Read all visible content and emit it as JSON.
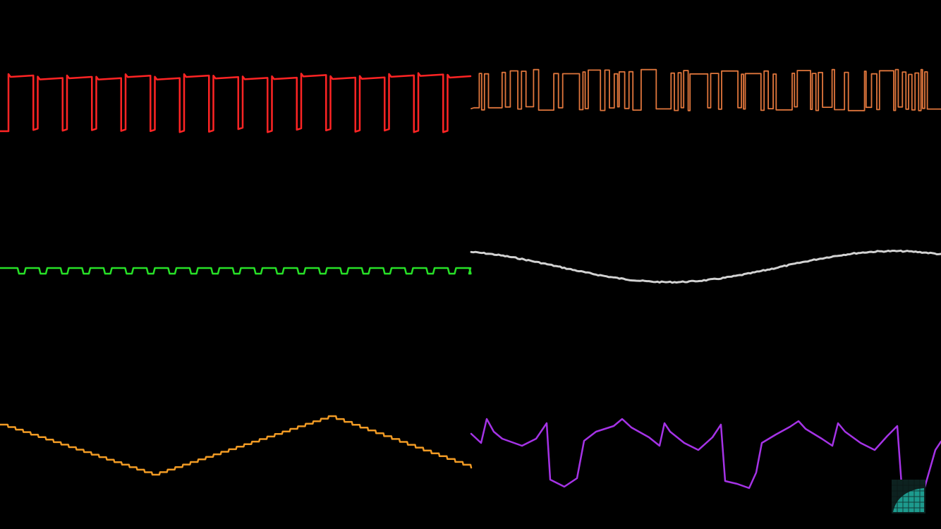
{
  "channels": [
    {
      "id": "pulse-1",
      "waveform": "pulse",
      "color": "#ff2424",
      "duty": 0.85
    },
    {
      "id": "pulse-2",
      "waveform": "pulse-fast",
      "color": "#e0763c",
      "duty": 0.45
    },
    {
      "id": "triangle-low",
      "waveform": "stepped-square",
      "color": "#27e027"
    },
    {
      "id": "noise-soft",
      "waveform": "smooth-sine",
      "color": "#d2d2d2"
    },
    {
      "id": "triangle-bass",
      "waveform": "stepped-triangle",
      "color": "#f09a24"
    },
    {
      "id": "sawtooth",
      "waveform": "spiky-square",
      "color": "#a533e6"
    }
  ],
  "logo": {
    "icon": "wave-logo-icon",
    "color": "#1fa89a"
  }
}
